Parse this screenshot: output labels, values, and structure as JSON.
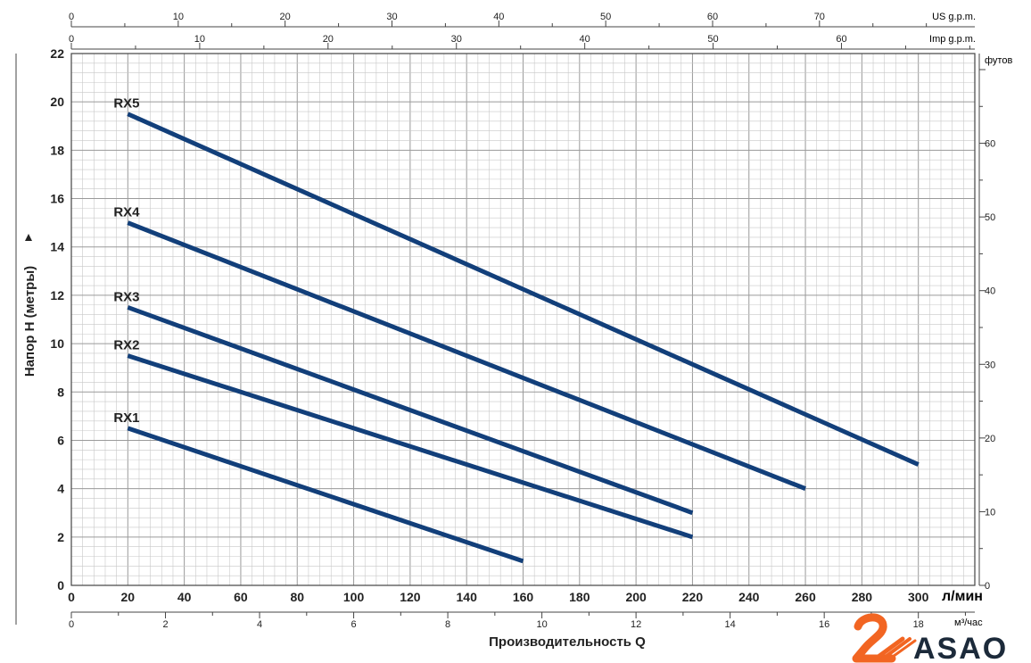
{
  "chart_data": {
    "type": "line",
    "xlabel": "Производительность Q",
    "ylabel": "Напор H (метры)",
    "x_unit": "л/мин",
    "right_axis_label": "футов",
    "xlim": [
      0,
      320
    ],
    "ylim": [
      0,
      22
    ],
    "x_ticks": [
      0,
      20,
      40,
      60,
      80,
      100,
      120,
      140,
      160,
      180,
      200,
      220,
      240,
      260,
      280,
      300
    ],
    "y_ticks": [
      0,
      2,
      4,
      6,
      8,
      10,
      12,
      14,
      16,
      18,
      20,
      22
    ],
    "grid": true,
    "secondary_axes": {
      "us_gpm": {
        "label": "US g.p.m.",
        "ticks": [
          0,
          10,
          20,
          30,
          40,
          50,
          60,
          70
        ]
      },
      "imp_gpm": {
        "label": "Imp g.p.m.",
        "ticks": [
          0,
          10,
          20,
          30,
          40,
          50,
          60
        ]
      },
      "m3h": {
        "label": "м³/час",
        "ticks": [
          0,
          2,
          4,
          6,
          8,
          10,
          12,
          14,
          16,
          18
        ]
      },
      "feet": {
        "label": "футов",
        "ticks": [
          0,
          10,
          20,
          30,
          40,
          50,
          60
        ]
      }
    },
    "series": [
      {
        "name": "RX1",
        "x": [
          20,
          160
        ],
        "y": [
          6.5,
          1
        ]
      },
      {
        "name": "RX2",
        "x": [
          20,
          220
        ],
        "y": [
          9.5,
          2
        ]
      },
      {
        "name": "RX3",
        "x": [
          20,
          220
        ],
        "y": [
          11.5,
          3
        ]
      },
      {
        "name": "RX4",
        "x": [
          20,
          260
        ],
        "y": [
          15,
          4
        ]
      },
      {
        "name": "RX5",
        "x": [
          20,
          300
        ],
        "y": [
          19.5,
          5
        ]
      }
    ],
    "line_color": "#123f7a"
  },
  "logo": {
    "text": "ASAO",
    "color": "#f26522"
  }
}
